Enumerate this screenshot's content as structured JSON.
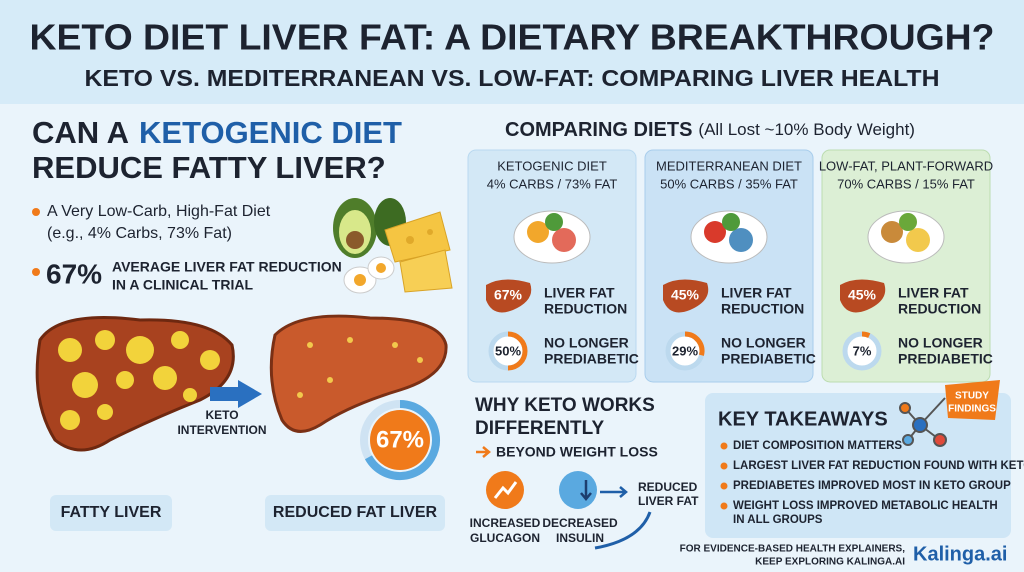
{
  "header": {
    "title": "KETO DIET LIVER FAT: A DIETARY BREAKTHROUGH?",
    "subtitle": "KETO VS. MEDITERRANEAN VS. LOW-FAT: COMPARING LIVER HEALTH"
  },
  "intro": {
    "heading_start": "CAN A",
    "heading_highlight": "KETOGENIC DIET",
    "heading_end": "REDUCE FATTY LIVER?",
    "bullet_lines": [
      "A Very Low-Carb, High-Fat Diet",
      "(e.g., 4% Carbs, 73% Fat)"
    ],
    "stat": "67%",
    "stat_lines": [
      "AVERAGE LIVER FAT REDUCTION",
      "IN A CLINICAL TRIAL"
    ]
  },
  "livers": {
    "arrow_label": [
      "KETO",
      "INTERVENTION"
    ],
    "before": "FATTY LIVER",
    "after": "REDUCED FAT LIVER",
    "reduction": {
      "value": 67,
      "label": "67%"
    }
  },
  "comparison": {
    "title": "COMPARING DIETS",
    "note": "(All Lost ~10% Body Weight)",
    "liver_label": [
      "LIVER FAT",
      "REDUCTION"
    ],
    "prediabetes_label": [
      "NO LONGER",
      "PREDIABETIC"
    ],
    "diets": [
      {
        "name": "KETOGENIC DIET",
        "macros": "4% CARBS / 73% FAT",
        "liver_fat": "67%",
        "prediabetes": {
          "value": 50,
          "label": "50%"
        }
      },
      {
        "name": "MEDITERRANEAN DIET",
        "macros": "50% CARBS / 35% FAT",
        "liver_fat": "45%",
        "prediabetes": {
          "value": 29,
          "label": "29%"
        }
      },
      {
        "name": "LOW-FAT, PLANT-FORWARD",
        "macros": "70% CARBS / 15% FAT",
        "liver_fat": "45%",
        "prediabetes": {
          "value": 7,
          "label": "7%"
        }
      }
    ]
  },
  "mechanism": {
    "title": [
      "WHY KETO WORKS",
      "DIFFERENTLY"
    ],
    "subtitle": "BEYOND WEIGHT LOSS",
    "steps": [
      [
        "INCREASED",
        "GLUCAGON"
      ],
      [
        "DECREASED",
        "INSULIN"
      ]
    ],
    "result": [
      "REDUCED",
      "LIVER FAT"
    ]
  },
  "takeaways": {
    "title": "KEY TAKEAWAYS",
    "badge": [
      "STUDY",
      "FINDINGS"
    ],
    "items": [
      [
        "DIET COMPOSITION MATTERS"
      ],
      [
        "LARGEST LIVER FAT REDUCTION FOUND WITH KETO"
      ],
      [
        "PREDIABETES IMPROVED MOST IN KETO GROUP"
      ],
      [
        "WEIGHT LOSS IMPROVED METABOLIC HEALTH",
        "IN ALL GROUPS"
      ]
    ]
  },
  "footer": {
    "note": [
      "FOR EVIDENCE-BASED HEALTH EXPLAINERS,",
      "KEEP EXPLORING KALINGA.AI"
    ],
    "brand": "Kalinga.ai"
  }
}
